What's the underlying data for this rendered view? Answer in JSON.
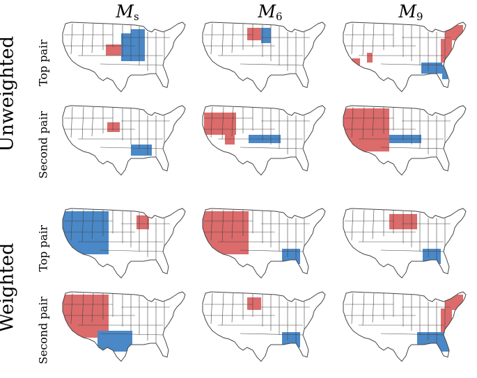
{
  "columns": [
    {
      "symbol": "M",
      "subscript": "s"
    },
    {
      "symbol": "M",
      "subscript": "6"
    },
    {
      "symbol": "M",
      "subscript": "9"
    }
  ],
  "groups": [
    "Unweighted",
    "Weighted"
  ],
  "row_labels": [
    "Top pair",
    "Second pair",
    "Top pair",
    "Second pair"
  ],
  "colors": {
    "red": "#dc6b6b",
    "blue": "#4a88c7",
    "outline": "#444444"
  },
  "panels": [
    {
      "row": 0,
      "col": 0,
      "red": [
        "kansas-block"
      ],
      "blue": [
        "great-lakes-block"
      ]
    },
    {
      "row": 0,
      "col": 1,
      "red": [
        "dakotas-block"
      ],
      "blue": [
        "minnesota-block"
      ]
    },
    {
      "row": 0,
      "col": 2,
      "red": [
        "east-coast-block",
        "southwest-patches"
      ],
      "blue": [
        "deep-south-block"
      ]
    },
    {
      "row": 1,
      "col": 0,
      "red": [
        "nebraska-block"
      ],
      "blue": [
        "south-central-block"
      ]
    },
    {
      "row": 1,
      "col": 1,
      "red": [
        "mountain-west-block"
      ],
      "blue": [
        "kansas-strip"
      ]
    },
    {
      "row": 1,
      "col": 2,
      "red": [
        "west-block"
      ],
      "blue": [
        "kansas-strip"
      ]
    },
    {
      "row": 2,
      "col": 0,
      "red": [
        "michigan-block"
      ],
      "blue": [
        "west-block"
      ]
    },
    {
      "row": 2,
      "col": 1,
      "red": [
        "west-block"
      ],
      "blue": [
        "alabama-block"
      ]
    },
    {
      "row": 2,
      "col": 2,
      "red": [
        "wisconsin-block"
      ],
      "blue": [
        "alabama-block"
      ]
    },
    {
      "row": 3,
      "col": 0,
      "red": [
        "west-block"
      ],
      "blue": [
        "texas-block"
      ]
    },
    {
      "row": 3,
      "col": 1,
      "red": [
        "dakotas-block"
      ],
      "blue": [
        "alabama-block"
      ]
    },
    {
      "row": 3,
      "col": 2,
      "red": [
        "east-coast-block"
      ],
      "blue": [
        "southeast-block"
      ]
    }
  ]
}
